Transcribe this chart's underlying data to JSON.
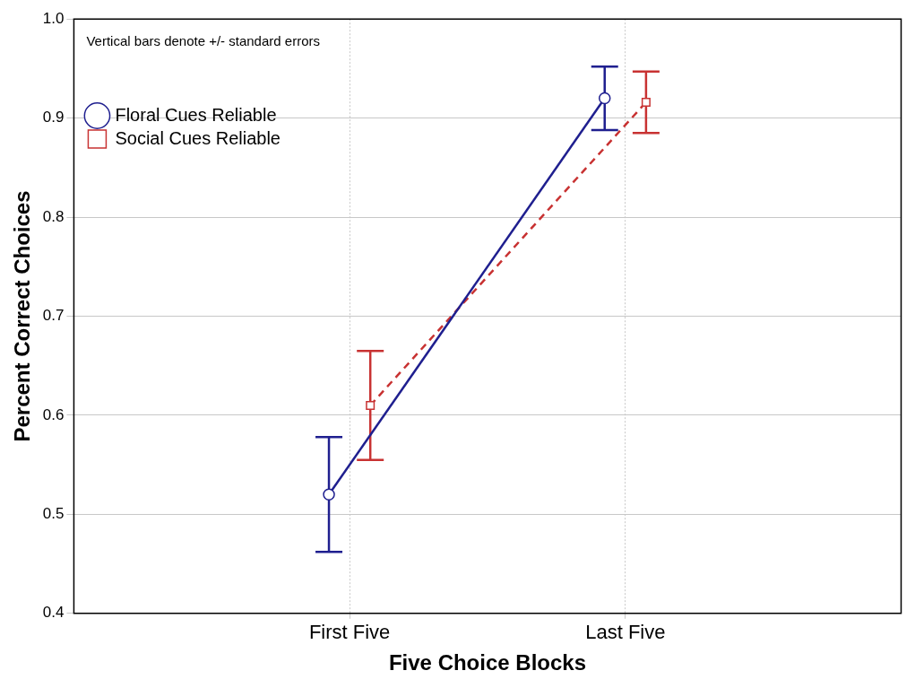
{
  "chart_data": {
    "type": "line",
    "xlabel": "Five Choice Blocks",
    "ylabel": "Percent Correct Choices",
    "categories": [
      "First Five",
      "Last Five"
    ],
    "ylim": [
      0.4,
      1.0
    ],
    "yticks": [
      0.4,
      0.5,
      0.6,
      0.7,
      0.8,
      0.9,
      {
        "value": 1.0,
        "label": "1.0"
      }
    ],
    "grid": true,
    "legend": "top left",
    "annotations": [
      "Vertical bars denote +/- standard errors"
    ],
    "series": [
      {
        "name": "Floral Cues Reliable",
        "color": "#1f1f8f",
        "values": [
          0.52,
          0.92
        ],
        "errors": [
          0.058,
          0.032
        ],
        "marker": "circle",
        "line_style": "solid"
      },
      {
        "name": "Social Cues Reliable",
        "color": "#c83232",
        "values": [
          0.61,
          0.916
        ],
        "errors": [
          0.055,
          0.031
        ],
        "marker": "square",
        "line_style": "dashed"
      }
    ]
  }
}
